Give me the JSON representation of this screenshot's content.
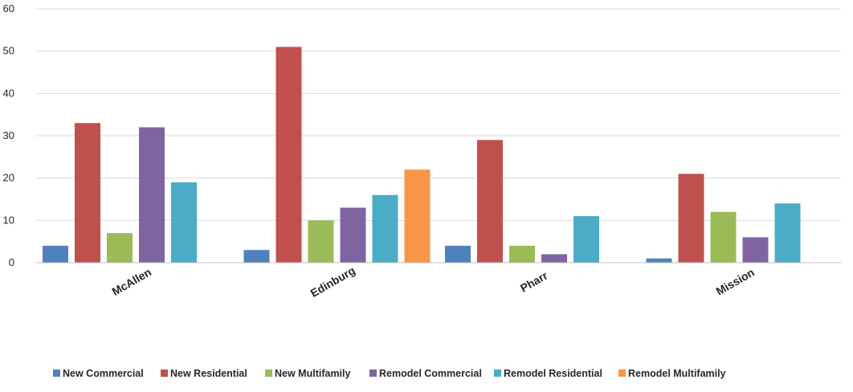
{
  "chart_data": {
    "type": "bar",
    "title": "",
    "xlabel": "",
    "ylabel": "",
    "ylim": [
      0,
      60
    ],
    "yticks": [
      "0",
      "10",
      "20",
      "30",
      "40",
      "50",
      "60"
    ],
    "categories": [
      "McAllen",
      "Edinburg",
      "Pharr",
      "Mission"
    ],
    "series": [
      {
        "name": "New Commercial",
        "color": "#4f81bd",
        "values": [
          4,
          3,
          4,
          1
        ]
      },
      {
        "name": "New Residential",
        "color": "#c0504d",
        "values": [
          33,
          51,
          29,
          21
        ]
      },
      {
        "name": "New Multifamily",
        "color": "#9bbb59",
        "values": [
          7,
          10,
          4,
          12
        ]
      },
      {
        "name": "Remodel Commercial",
        "color": "#8064a2",
        "values": [
          32,
          13,
          2,
          6
        ]
      },
      {
        "name": "Remodel Residential",
        "color": "#4bacc6",
        "values": [
          19,
          16,
          11,
          14
        ]
      },
      {
        "name": "Remodel Multifamily",
        "color": "#f79646",
        "values": [
          0,
          22,
          0,
          0
        ]
      }
    ],
    "grid": true,
    "legend_position": "bottom"
  }
}
